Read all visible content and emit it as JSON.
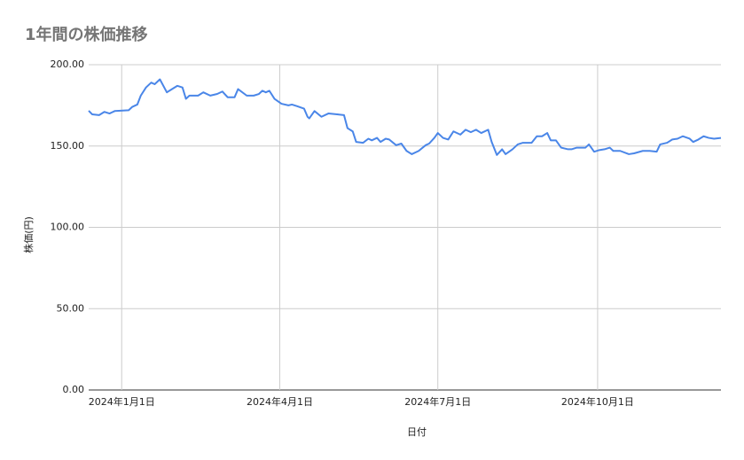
{
  "chart_data": {
    "type": "line",
    "title": "1年間の株価推移",
    "x_label": "日付",
    "y_label": "株価(円)",
    "x": [
      "2023-12-13",
      "2023-12-15",
      "2023-12-19",
      "2023-12-22",
      "2023-12-25",
      "2023-12-28",
      "2024-01-05",
      "2024-01-07",
      "2024-01-10",
      "2024-01-12",
      "2024-01-15",
      "2024-01-18",
      "2024-01-20",
      "2024-01-23",
      "2024-01-27",
      "2024-01-30",
      "2024-02-02",
      "2024-02-05",
      "2024-02-07",
      "2024-02-09",
      "2024-02-14",
      "2024-02-17",
      "2024-02-21",
      "2024-02-25",
      "2024-02-28",
      "2024-03-02",
      "2024-03-06",
      "2024-03-08",
      "2024-03-13",
      "2024-03-17",
      "2024-03-20",
      "2024-03-22",
      "2024-03-24",
      "2024-03-26",
      "2024-03-29",
      "2024-04-02",
      "2024-04-06",
      "2024-04-08",
      "2024-04-11",
      "2024-04-15",
      "2024-04-17",
      "2024-04-18",
      "2024-04-21",
      "2024-04-25",
      "2024-04-29",
      "2024-05-04",
      "2024-05-08",
      "2024-05-10",
      "2024-05-13",
      "2024-05-15",
      "2024-05-19",
      "2024-05-22",
      "2024-05-24",
      "2024-05-27",
      "2024-05-29",
      "2024-06-01",
      "2024-06-03",
      "2024-06-07",
      "2024-06-10",
      "2024-06-13",
      "2024-06-16",
      "2024-06-20",
      "2024-06-24",
      "2024-06-26",
      "2024-06-29",
      "2024-07-01",
      "2024-07-04",
      "2024-07-07",
      "2024-07-10",
      "2024-07-14",
      "2024-07-17",
      "2024-07-20",
      "2024-07-23",
      "2024-07-26",
      "2024-07-30",
      "2024-08-01",
      "2024-08-04",
      "2024-08-07",
      "2024-08-09",
      "2024-08-13",
      "2024-08-16",
      "2024-08-19",
      "2024-08-24",
      "2024-08-27",
      "2024-08-30",
      "2024-09-02",
      "2024-09-04",
      "2024-09-07",
      "2024-09-10",
      "2024-09-14",
      "2024-09-16",
      "2024-09-19",
      "2024-09-24",
      "2024-09-26",
      "2024-09-29",
      "2024-10-02",
      "2024-10-05",
      "2024-10-08",
      "2024-10-10",
      "2024-10-14",
      "2024-10-19",
      "2024-10-22",
      "2024-10-27",
      "2024-10-31",
      "2024-11-04",
      "2024-11-06",
      "2024-11-10",
      "2024-11-13",
      "2024-11-16",
      "2024-11-19",
      "2024-11-23",
      "2024-11-25",
      "2024-11-28",
      "2024-12-01",
      "2024-12-04",
      "2024-12-07",
      "2024-12-11"
    ],
    "series": [
      {
        "name": "株価",
        "color": "#4a86e8",
        "values": [
          171.7,
          169.5,
          169,
          171,
          170,
          171.5,
          172,
          174,
          175.5,
          181,
          186,
          189,
          188,
          191,
          183,
          185,
          187,
          186,
          179,
          181,
          181,
          183,
          181,
          182,
          183.5,
          180,
          180,
          185,
          181,
          181,
          182,
          184,
          183,
          184,
          179,
          176,
          175,
          175.5,
          174.5,
          173,
          168,
          167,
          171.5,
          168,
          170,
          169.5,
          169,
          161,
          159,
          152.5,
          152,
          154.5,
          153.5,
          155,
          152.5,
          154.5,
          154,
          150.5,
          151.5,
          147,
          145,
          147,
          150.5,
          151.5,
          155,
          158,
          155,
          154,
          159,
          157,
          160,
          158.5,
          160,
          158,
          160,
          152.5,
          144.5,
          148,
          145,
          148,
          151,
          152,
          152,
          156,
          156,
          158,
          153.5,
          153.5,
          149,
          148,
          148,
          149,
          149,
          151,
          146.5,
          147.5,
          148,
          149,
          147,
          147,
          145,
          145.5,
          147,
          147,
          146.5,
          151,
          152,
          154,
          154.5,
          156,
          154.5,
          152.5,
          154,
          156,
          155,
          154.5,
          155
        ]
      }
    ],
    "xlim": [
      "2023-12-13",
      "2024-12-11"
    ],
    "xticks": [
      {
        "value": "2024-01-01",
        "label": "2024年1月1日"
      },
      {
        "value": "2024-04-01",
        "label": "2024年4月1日"
      },
      {
        "value": "2024-07-01",
        "label": "2024年7月1日"
      },
      {
        "value": "2024-10-01",
        "label": "2024年10月1日"
      }
    ],
    "ylim": [
      0,
      200
    ],
    "yticks": [
      {
        "value": 0,
        "label": "0.00"
      },
      {
        "value": 50,
        "label": "50.00"
      },
      {
        "value": 100,
        "label": "100.00"
      },
      {
        "value": 150,
        "label": "150.00"
      },
      {
        "value": 200,
        "label": "200.00"
      }
    ],
    "grid": true
  }
}
